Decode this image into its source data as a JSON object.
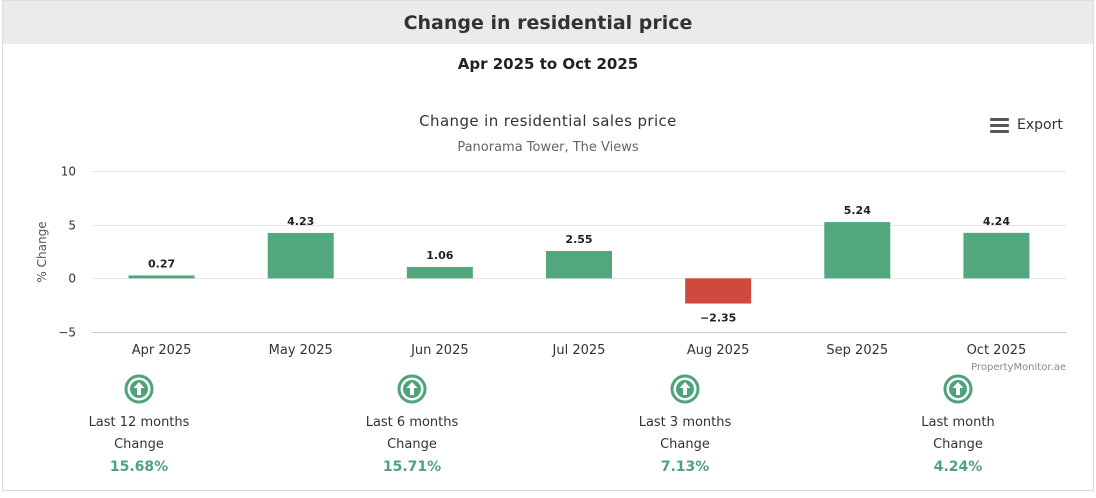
{
  "header": {
    "title": "Change in residential price"
  },
  "period": "Apr 2025 to Oct 2025",
  "export_label": "Export",
  "credit": "PropertyMonitor.ae",
  "chart_data": {
    "type": "bar",
    "title": "Change in residential sales price",
    "subtitle": "Panorama Tower, The Views",
    "xlabel": "",
    "ylabel": "% Change",
    "categories": [
      "Apr 2025",
      "May 2025",
      "Jun 2025",
      "Jul 2025",
      "Aug 2025",
      "Sep 2025",
      "Oct 2025"
    ],
    "values": [
      0.27,
      4.23,
      1.06,
      2.55,
      -2.35,
      5.24,
      4.24
    ],
    "value_labels": [
      "0.27",
      "4.23",
      "1.06",
      "2.55",
      "−2.35",
      "5.24",
      "4.24"
    ],
    "ylim": [
      -5,
      10
    ],
    "yticks": [
      -5,
      0,
      5,
      10
    ],
    "ytick_labels": [
      "−5",
      "0",
      "5",
      "10"
    ],
    "grid": true,
    "legend": "none",
    "colors": {
      "positive": "#52a77c",
      "negative": "#cf4a3c"
    }
  },
  "stats": [
    {
      "period": "Last 12 months",
      "label": "Change",
      "value": "15.68%",
      "icon": "arrow-up-circle-icon"
    },
    {
      "period": "Last 6 months",
      "label": "Change",
      "value": "15.71%",
      "icon": "arrow-up-circle-icon"
    },
    {
      "period": "Last 3 months",
      "label": "Change",
      "value": "7.13%",
      "icon": "arrow-up-circle-icon"
    },
    {
      "period": "Last month",
      "label": "Change",
      "value": "4.24%",
      "icon": "arrow-up-circle-icon"
    }
  ],
  "accent_color": "#4fa37a"
}
